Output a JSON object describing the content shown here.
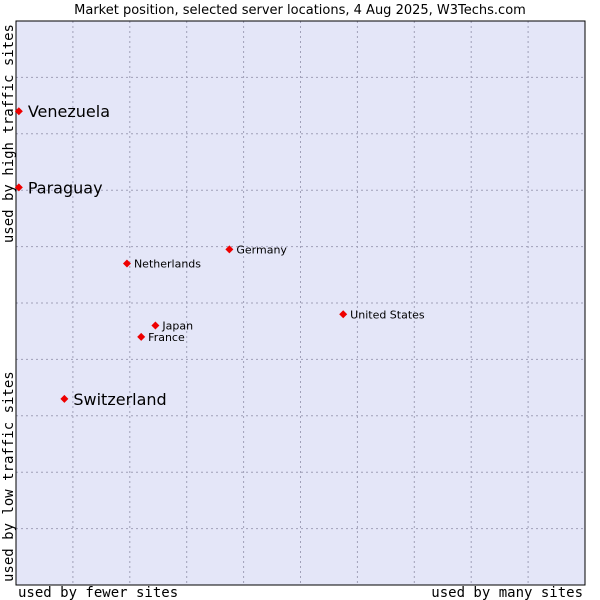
{
  "chart_data": {
    "type": "scatter",
    "title": "Market position, selected server locations, 4 Aug 2025, W3Techs.com",
    "xlabel_left": "used by fewer sites",
    "xlabel_right": "used by many sites",
    "ylabel_bottom": "used by low traffic sites",
    "ylabel_top": "used by high traffic sites",
    "xlim": [
      0,
      100
    ],
    "ylim": [
      0,
      100
    ],
    "grid": true,
    "colors": {
      "plot_background": "#e4e6f8",
      "grid": "#a0a0b8",
      "marker": "#ee0000",
      "border": "#000000"
    },
    "points": [
      {
        "label": "Venezuela",
        "x": 0.5,
        "y": 84,
        "size": "large"
      },
      {
        "label": "Paraguay",
        "x": 0.5,
        "y": 70.5,
        "size": "large"
      },
      {
        "label": "Germany",
        "x": 37.5,
        "y": 59.5,
        "size": "small"
      },
      {
        "label": "Netherlands",
        "x": 19.5,
        "y": 57,
        "size": "small"
      },
      {
        "label": "United States",
        "x": 57.5,
        "y": 48,
        "size": "small"
      },
      {
        "label": "Japan",
        "x": 24.5,
        "y": 46,
        "size": "small"
      },
      {
        "label": "France",
        "x": 22,
        "y": 44,
        "size": "small"
      },
      {
        "label": "Switzerland",
        "x": 8.5,
        "y": 33,
        "size": "large"
      }
    ]
  }
}
